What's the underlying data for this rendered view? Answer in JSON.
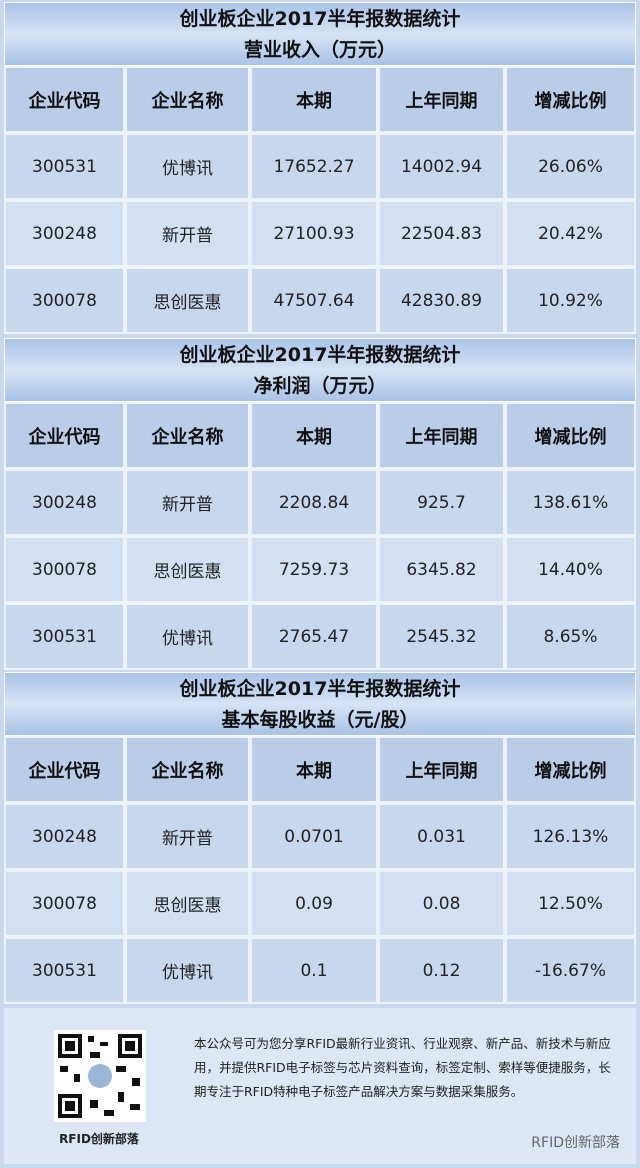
{
  "tables": [
    {
      "title": [
        "创业板企业2017半年报数据统计",
        "营业收入（万元）"
      ],
      "header": [
        "企业代码",
        "企业名称",
        "本期",
        "上年同期",
        "增减比例"
      ],
      "rows": [
        [
          "300531",
          "优博讯",
          "17652.27",
          "14002.94",
          "26.06%"
        ],
        [
          "300248",
          "新开普",
          "27100.93",
          "22504.83",
          "20.42%"
        ],
        [
          "300078",
          "思创医惠",
          "47507.64",
          "42830.89",
          "10.92%"
        ]
      ]
    },
    {
      "title": [
        "创业板企业2017半年报数据统计",
        "净利润（万元）"
      ],
      "header": [
        "企业代码",
        "企业名称",
        "本期",
        "上年同期",
        "增减比例"
      ],
      "rows": [
        [
          "300248",
          "新开普",
          "2208.84",
          "925.7",
          "138.61%"
        ],
        [
          "300078",
          "思创医惠",
          "7259.73",
          "6345.82",
          "14.40%"
        ],
        [
          "300531",
          "优博讯",
          "2765.47",
          "2545.32",
          "8.65%"
        ]
      ]
    },
    {
      "title": [
        "创业板企业2017半年报数据统计",
        "基本每股收益（元/股）"
      ],
      "header": [
        "企业代码",
        "企业名称",
        "本期",
        "上年同期",
        "增减比例"
      ],
      "rows": [
        [
          "300248",
          "新开普",
          "0.0701",
          "0.031",
          "126.13%"
        ],
        [
          "300078",
          "思创医惠",
          "0.09",
          "0.08",
          "12.50%"
        ],
        [
          "300531",
          "优博讯",
          "0.1",
          "0.12",
          "-16.67%"
        ]
      ]
    }
  ],
  "footer": {
    "text": "本公众号可为您分享RFID最新行业资讯、行业观察、新产品、新技术与新应用，并提供RFID电子标签与芯片资料查询，标签定制、索样等便捷服务，长期专注于RFID特种电子标签产品解决方案与数据采集服务。",
    "qr_label": "RFID创新部落",
    "watermark": "RFID创新部落"
  }
}
